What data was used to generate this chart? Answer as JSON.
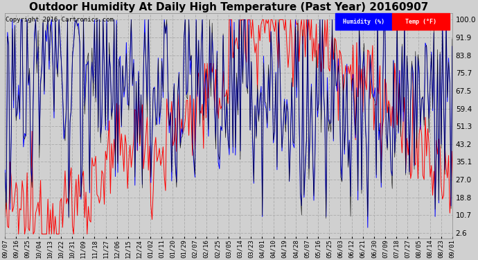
{
  "title": "Outdoor Humidity At Daily High Temperature (Past Year) 20160907",
  "copyright": "Copyright 2016 Cartronics.com",
  "bg_color": "#d0d0d0",
  "plot_bg_color": "#d0d0d0",
  "grid_color": "#b0b0b0",
  "yticks": [
    2.6,
    10.7,
    18.8,
    27.0,
    35.1,
    43.2,
    51.3,
    59.4,
    67.5,
    75.7,
    83.8,
    91.9,
    100.0
  ],
  "ylim": [
    0,
    103
  ],
  "legend_humidity_label": "Humidity (%)",
  "legend_temp_label": "Temp (°F)",
  "humidity_color": "#0000ff",
  "temp_color": "#ff0000",
  "black_color": "#000000",
  "xtick_labels": [
    "09/07",
    "09/16",
    "09/25",
    "10/04",
    "10/13",
    "10/22",
    "10/31",
    "11/09",
    "11/18",
    "11/27",
    "12/06",
    "12/15",
    "12/24",
    "01/02",
    "01/11",
    "01/20",
    "01/29",
    "02/07",
    "02/16",
    "02/25",
    "03/05",
    "03/14",
    "03/23",
    "04/01",
    "04/10",
    "04/19",
    "04/28",
    "05/07",
    "05/16",
    "05/25",
    "06/03",
    "06/12",
    "06/21",
    "06/30",
    "07/09",
    "07/18",
    "07/27",
    "08/05",
    "08/14",
    "08/23",
    "09/01"
  ],
  "title_fontsize": 11,
  "axis_fontsize": 6.5,
  "copyright_fontsize": 6.5,
  "n_days": 366
}
